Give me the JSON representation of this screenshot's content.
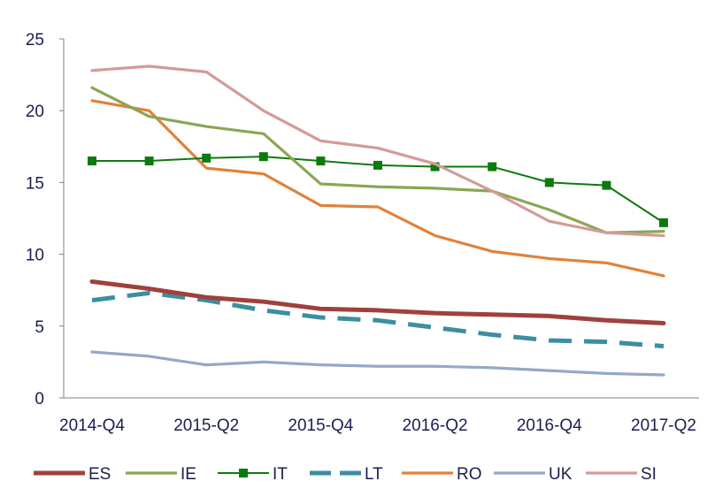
{
  "chart_data": {
    "type": "line",
    "title": "",
    "xlabel": "",
    "ylabel": "",
    "ylim": [
      0,
      25
    ],
    "yticks": [
      "0",
      "5",
      "10",
      "15",
      "20",
      "25"
    ],
    "x": [
      "2014-Q4",
      "2015-Q1",
      "2015-Q2",
      "2015-Q3",
      "2015-Q4",
      "2016-Q1",
      "2016-Q2",
      "2016-Q3",
      "2016-Q4",
      "2017-Q1",
      "2017-Q2"
    ],
    "xtick_labels": [
      "2014-Q4",
      "2015-Q2",
      "2015-Q4",
      "2016-Q2",
      "2016-Q4",
      "2017-Q2"
    ],
    "grid": false,
    "legend_position": "bottom",
    "series": [
      {
        "name": "ES",
        "color": "#a0403d",
        "style": "thick",
        "values": [
          8.1,
          7.6,
          7.0,
          6.7,
          6.2,
          6.1,
          5.9,
          5.8,
          5.7,
          5.4,
          5.2
        ]
      },
      {
        "name": "IE",
        "color": "#8aa653",
        "style": "solid",
        "values": [
          21.6,
          19.6,
          18.9,
          18.4,
          14.9,
          14.7,
          14.6,
          14.4,
          13.1,
          11.5,
          11.6
        ]
      },
      {
        "name": "IT",
        "color": "#0d7a0d",
        "style": "marker",
        "values": [
          16.5,
          16.5,
          16.7,
          16.8,
          16.5,
          16.2,
          16.1,
          16.1,
          15.0,
          14.8,
          12.2
        ]
      },
      {
        "name": "LT",
        "color": "#3a8fa0",
        "style": "dashed",
        "values": [
          6.8,
          7.3,
          6.8,
          6.1,
          5.6,
          5.4,
          4.9,
          4.4,
          4.0,
          3.9,
          3.6
        ]
      },
      {
        "name": "RO",
        "color": "#e0823a",
        "style": "solid",
        "values": [
          20.7,
          20.0,
          16.0,
          15.6,
          13.4,
          13.3,
          11.3,
          10.2,
          9.7,
          9.4,
          8.5
        ]
      },
      {
        "name": "UK",
        "color": "#94a8c8",
        "style": "solid",
        "values": [
          3.2,
          2.9,
          2.3,
          2.5,
          2.3,
          2.2,
          2.2,
          2.1,
          1.9,
          1.7,
          1.6
        ]
      },
      {
        "name": "SI",
        "color": "#d49a98",
        "style": "solid",
        "values": [
          22.8,
          23.1,
          22.7,
          20.0,
          17.9,
          17.4,
          16.3,
          14.4,
          12.3,
          11.5,
          11.3
        ]
      }
    ]
  }
}
